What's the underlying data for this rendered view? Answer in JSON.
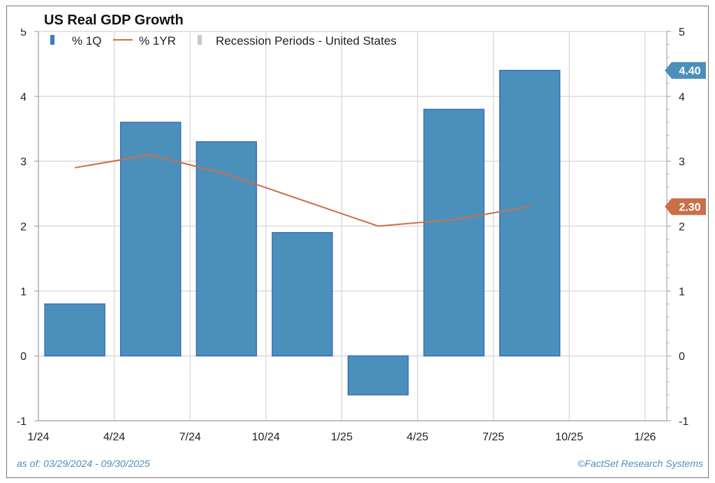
{
  "chart_data": {
    "type": "bar+line",
    "title": "US Real GDP Growth",
    "legend": [
      {
        "label": "% 1Q",
        "kind": "bar",
        "color": "#4a90bb"
      },
      {
        "label": "% 1YR",
        "kind": "line",
        "color": "#c8704a"
      },
      {
        "label": "Recession Periods - United States",
        "kind": "shade",
        "color": "#c8c8c8"
      }
    ],
    "legend_placement": "top-left",
    "x_tick_labels": [
      "1/24",
      "4/24",
      "7/24",
      "10/24",
      "1/25",
      "4/25",
      "7/25",
      "10/25",
      "1/26"
    ],
    "quarters": [
      "Q1 2024",
      "Q2 2024",
      "Q3 2024",
      "Q4 2024",
      "Q1 2025",
      "Q2 2025",
      "Q3 2025"
    ],
    "series": [
      {
        "name": "% 1Q",
        "type": "bar",
        "values": [
          0.8,
          3.6,
          3.3,
          1.9,
          -0.6,
          3.8,
          4.4
        ]
      },
      {
        "name": "% 1YR",
        "type": "line",
        "values": [
          2.9,
          3.1,
          2.8,
          2.4,
          2.0,
          2.1,
          2.3
        ]
      }
    ],
    "ylim": [
      -1,
      5
    ],
    "y_ticks": [
      -1,
      0,
      1,
      2,
      3,
      4,
      5
    ],
    "grid": true,
    "last_value_labels": [
      {
        "text": "4.40",
        "value": 4.4,
        "color": "#4a90bb"
      },
      {
        "text": "2.30",
        "value": 2.3,
        "color": "#c8704a"
      }
    ]
  },
  "footer": {
    "date_range": "as of: 03/29/2024 - 09/30/2025",
    "source": "©FactSet Research Systems"
  }
}
